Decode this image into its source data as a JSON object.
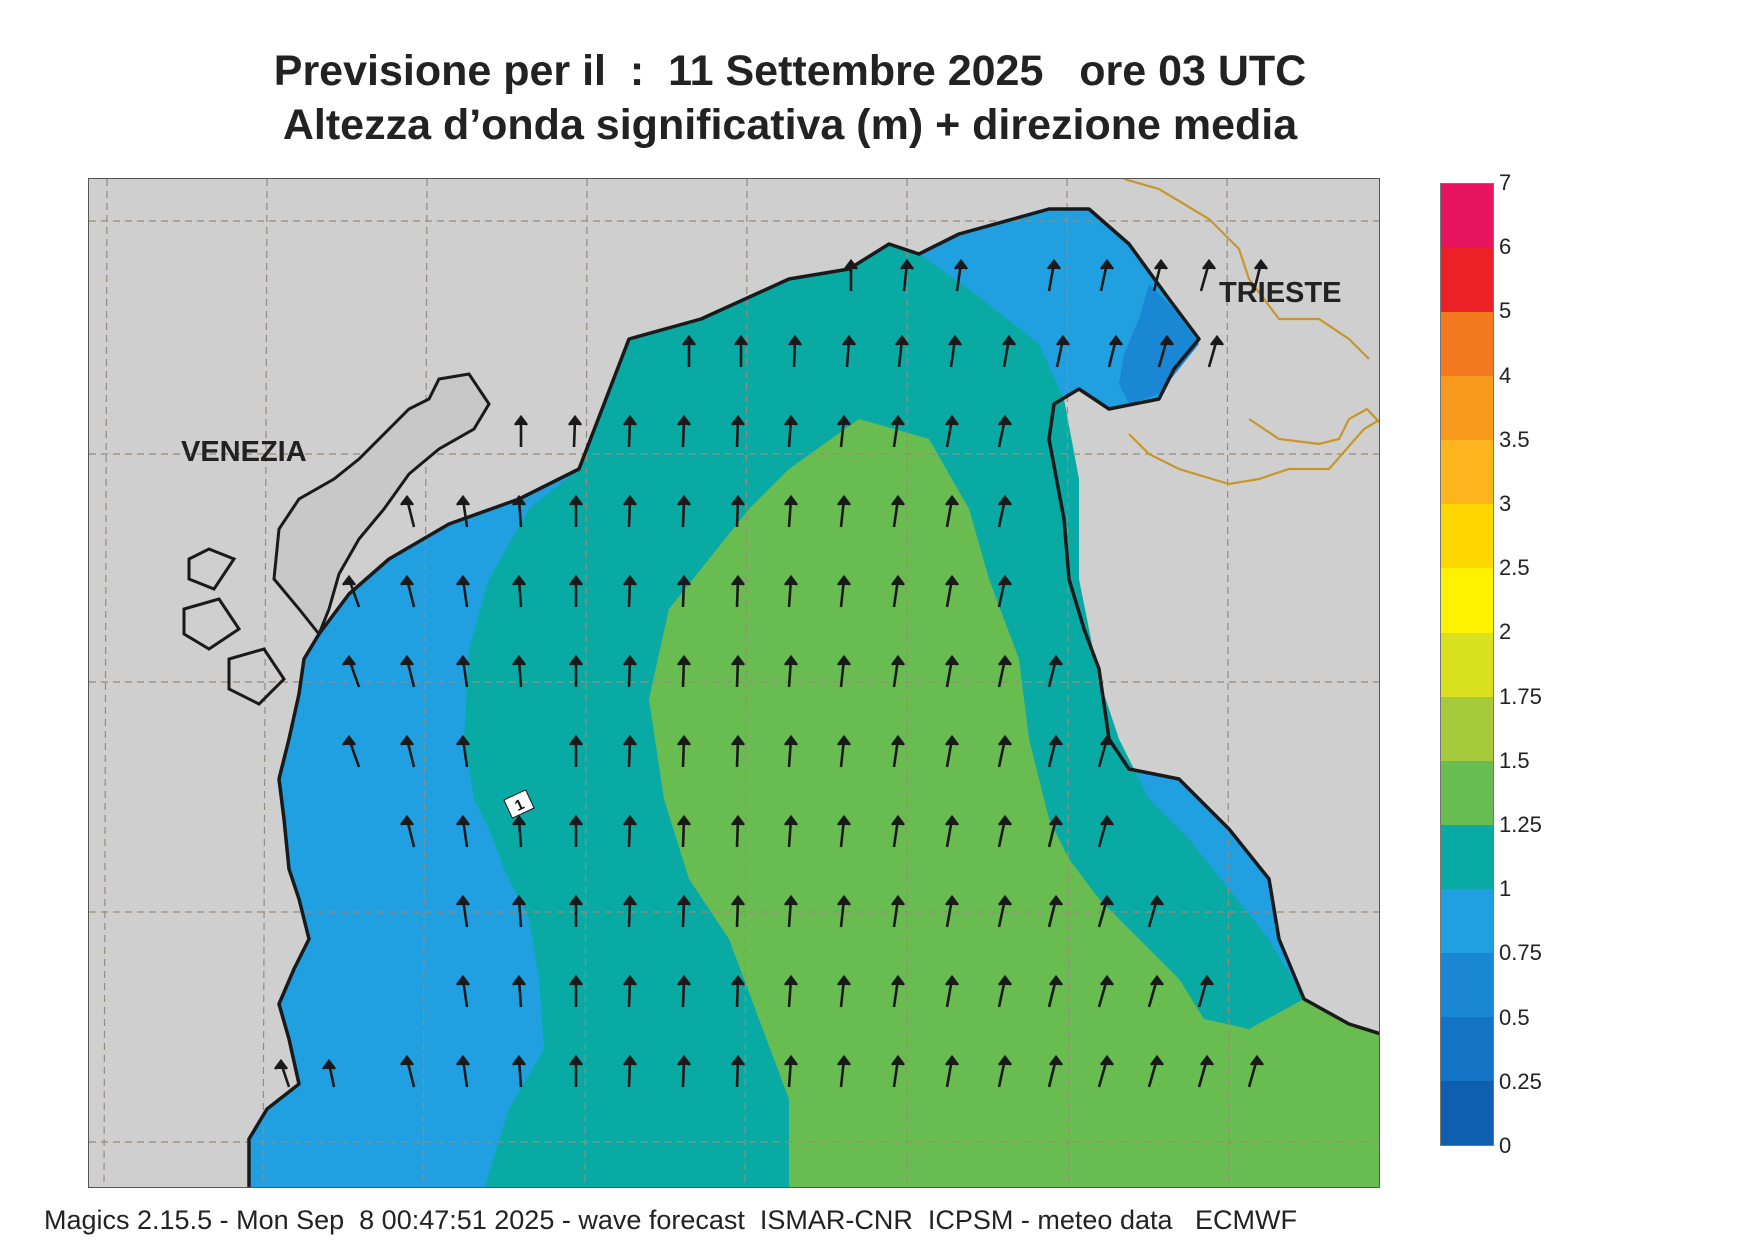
{
  "title": {
    "line1": "Previsione per il  :  11 Settembre 2025   ore 03 UTC",
    "line2": "Altezza d’onda significativa (m) + direzione media"
  },
  "map": {
    "region": "Adriatico settentrionale",
    "labels": {
      "venezia": "VENEZIA",
      "trieste": "TRIESTE"
    },
    "contour_label": "1",
    "arrow_direction": "towards north / north-north-west",
    "colors": {
      "land": "#cfcfcf",
      "coast": "#1a1a1a",
      "border": "#c8962a",
      "graticule": "#9a8a7a"
    }
  },
  "legend": {
    "ticks": [
      "0",
      "0.25",
      "0.5",
      "0.75",
      "1",
      "1.25",
      "1.5",
      "1.75",
      "2",
      "2.5",
      "3",
      "3.5",
      "4",
      "5",
      "6",
      "7"
    ],
    "colors": [
      "#0f5fb0",
      "#1373c4",
      "#1a87d4",
      "#20a0e0",
      "#0aaaa4",
      "#69bc50",
      "#a5ca3b",
      "#d8e020",
      "#fff200",
      "#ffd700",
      "#fcb51c",
      "#f99a1c",
      "#f47a22",
      "#eb2127",
      "#e9145f"
    ]
  },
  "footer": "Magics 2.15.5 - Mon Sep  8 00:47:51 2025 - wave forecast  ISMAR-CNR  ICPSM - meteo data   ECMWF"
}
